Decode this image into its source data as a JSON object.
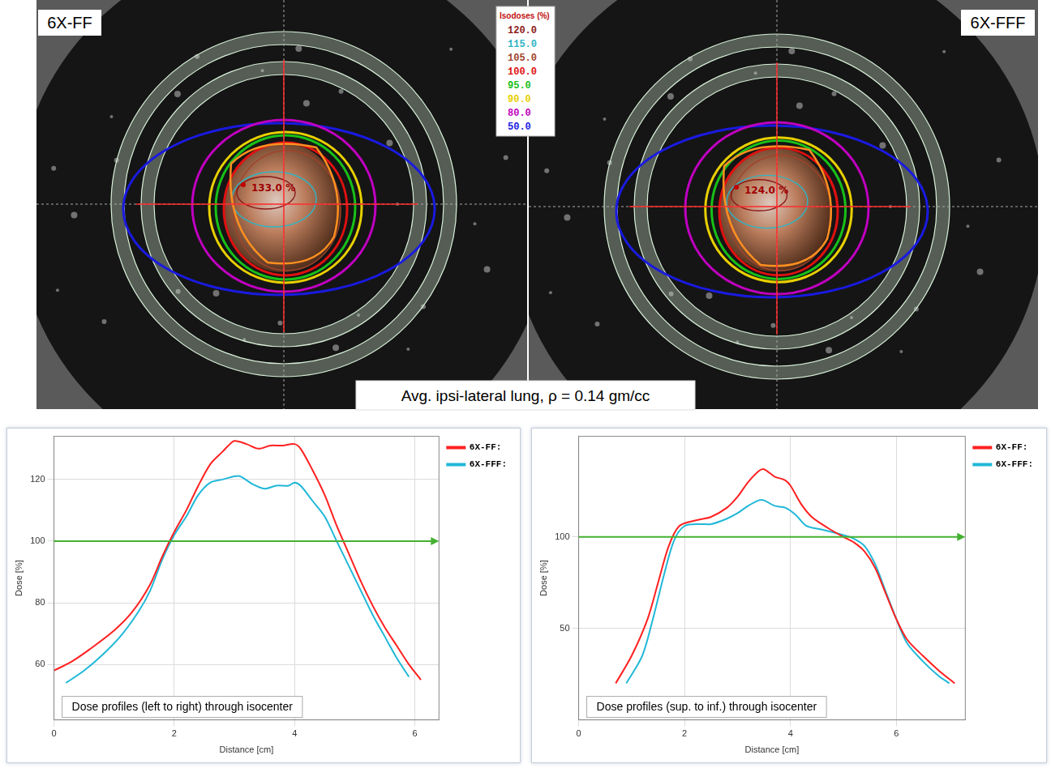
{
  "panels": [
    {
      "label": "6X-FF",
      "max_dose_label": "133.0 %"
    },
    {
      "label": "6X-FFF",
      "max_dose_label": "124.0 %"
    }
  ],
  "isodose_legend": {
    "title": "Isodoses (%)",
    "levels": [
      {
        "value": 120,
        "label": "120.0",
        "color": "#8b1a1a"
      },
      {
        "value": 115,
        "label": "115.0",
        "color": "#2fb5c5"
      },
      {
        "value": 105,
        "label": "105.0",
        "color": "#a0442c"
      },
      {
        "value": 100,
        "label": "100.0",
        "color": "#e01010"
      },
      {
        "value": 95,
        "label": "95.0",
        "color": "#18c018"
      },
      {
        "value": 90,
        "label": "90.0",
        "color": "#e8d000"
      },
      {
        "value": 80,
        "label": "80.0",
        "color": "#c000c0"
      },
      {
        "value": 50,
        "label": "50.0",
        "color": "#1a1ae0"
      }
    ]
  },
  "caption": "Avg. ipsi-lateral lung, ρ = 0.14 gm/cc",
  "chart_data": [
    {
      "type": "line",
      "annotation": "Dose profiles (left to right) through isocenter",
      "x_label": "Distance [cm]",
      "y_label": "Dose [%]",
      "xlim": [
        0,
        6.4
      ],
      "xticks": [
        0,
        2,
        4,
        6
      ],
      "ylim": [
        42,
        134
      ],
      "yticks": [
        60,
        80,
        100,
        120
      ],
      "grid": true,
      "legend": "right",
      "reference_line": {
        "value": 100,
        "color": "#44b030"
      },
      "series": [
        {
          "name": "6X-FF:",
          "color": "#ff2020",
          "x": [
            0,
            0.3,
            0.6,
            1.0,
            1.3,
            1.6,
            1.8,
            2.0,
            2.2,
            2.4,
            2.6,
            2.8,
            2.9,
            3.0,
            3.2,
            3.4,
            3.6,
            3.8,
            4.0,
            4.1,
            4.3,
            4.5,
            4.7,
            4.9,
            5.1,
            5.3,
            5.5,
            5.7,
            5.9,
            6.1
          ],
          "values": [
            58,
            61,
            65,
            71,
            77,
            86,
            95,
            103,
            110,
            118,
            125,
            129,
            131,
            132.5,
            131.5,
            130,
            131,
            131,
            131.5,
            130,
            123,
            115,
            105,
            96,
            87,
            79,
            72,
            66,
            60,
            55
          ]
        },
        {
          "name": "6X-FFF:",
          "color": "#20b8d8",
          "x": [
            0.2,
            0.5,
            0.8,
            1.1,
            1.4,
            1.6,
            1.8,
            2.0,
            2.2,
            2.4,
            2.6,
            2.8,
            3.0,
            3.1,
            3.3,
            3.5,
            3.7,
            3.9,
            4.0,
            4.1,
            4.3,
            4.5,
            4.7,
            4.9,
            5.1,
            5.3,
            5.5,
            5.7,
            5.9
          ],
          "values": [
            54,
            58,
            63,
            69,
            77,
            84,
            94,
            102,
            108,
            115,
            119,
            120,
            121,
            121,
            118.5,
            117,
            118,
            118,
            119,
            118,
            113,
            108,
            100,
            92,
            84,
            76,
            69,
            62,
            56
          ]
        }
      ]
    },
    {
      "type": "line",
      "annotation": "Dose profiles (sup. to inf.) through isocenter",
      "x_label": "Distance [cm]",
      "y_label": "Dose [%]",
      "xlim": [
        0,
        7.3
      ],
      "xticks": [
        0,
        2,
        4,
        6
      ],
      "ylim": [
        0,
        155
      ],
      "yticks": [
        50,
        100
      ],
      "grid": true,
      "legend": "right",
      "reference_line": {
        "value": 100,
        "color": "#44b030"
      },
      "series": [
        {
          "name": "6X-FF:",
          "color": "#ff2020",
          "x": [
            0.7,
            1.0,
            1.3,
            1.5,
            1.7,
            1.9,
            2.2,
            2.5,
            2.8,
            3.0,
            3.2,
            3.4,
            3.5,
            3.7,
            3.9,
            4.0,
            4.2,
            4.4,
            4.7,
            5.0,
            5.2,
            5.4,
            5.6,
            5.8,
            6.0,
            6.2,
            6.5,
            6.8,
            7.1
          ],
          "values": [
            20,
            35,
            55,
            75,
            95,
            106,
            109,
            111,
            116,
            122,
            130,
            136,
            137,
            133,
            131,
            128,
            118,
            111,
            105,
            100,
            97,
            92,
            83,
            69,
            55,
            44,
            35,
            27,
            20
          ]
        },
        {
          "name": "6X-FFF:",
          "color": "#20b8d8",
          "x": [
            0.9,
            1.2,
            1.4,
            1.6,
            1.8,
            2.0,
            2.3,
            2.5,
            2.8,
            3.0,
            3.2,
            3.4,
            3.5,
            3.7,
            3.9,
            4.1,
            4.3,
            4.6,
            5.0,
            5.2,
            5.4,
            5.6,
            5.8,
            6.0,
            6.2,
            6.5,
            6.8,
            7.0
          ],
          "values": [
            20,
            35,
            55,
            78,
            98,
            106,
            107,
            107,
            110,
            113,
            117,
            120,
            120,
            117,
            116,
            112,
            106,
            104,
            101,
            99,
            95,
            85,
            70,
            55,
            42,
            32,
            24,
            20
          ]
        }
      ]
    }
  ]
}
